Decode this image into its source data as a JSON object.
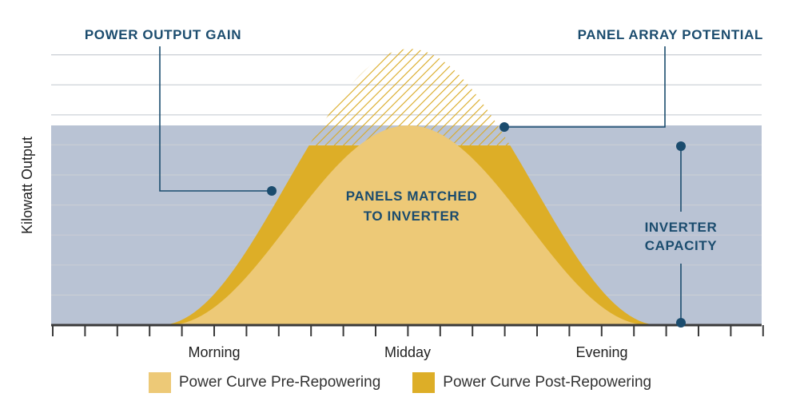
{
  "chart_data": {
    "type": "area",
    "x": [
      "Morning",
      "Midday",
      "Evening"
    ],
    "ylabel": "Kilowatt Output",
    "grid": true,
    "ylim": [
      0,
      9
    ],
    "inverter_capacity": 6,
    "series": [
      {
        "name": "Power Curve Pre-Repowering",
        "color": "#edc977",
        "peak": 6
      },
      {
        "name": "Power Curve Post-Repowering",
        "color": "#ddae27",
        "peak": 8.3,
        "clipped_at": 6
      }
    ],
    "annotations": {
      "power_output_gain": "POWER OUTPUT GAIN",
      "panel_array_potential": "PANEL ARRAY POTENTIAL",
      "matched_line1": "PANELS MATCHED",
      "matched_line2": "TO INVERTER",
      "inverter_line1": "INVERTER",
      "inverter_line2": "CAPACITY"
    },
    "colors": {
      "capacity_band": "#b9c3d4",
      "gridline": "#c9cdd4",
      "annotation": "#1b4c6e",
      "axis": "#3a3a3a",
      "hatch": "#d9a922"
    }
  }
}
